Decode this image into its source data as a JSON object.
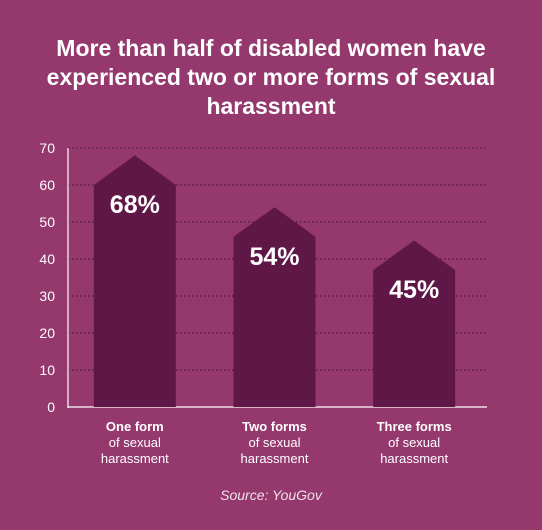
{
  "title": "More than half of disabled women have experienced two or more forms of sexual harassment",
  "source": "Source: YouGov",
  "colors": {
    "background": "#94386e",
    "bar": "#5e1746",
    "text": "#ffffff",
    "grid": "#3f0d2e"
  },
  "chart_data": {
    "type": "bar",
    "title": "More than half of disabled women have experienced two or more forms of sexual harassment",
    "categories": [
      {
        "strong": "One form",
        "rest": "of sexual harassment"
      },
      {
        "strong": "Two forms",
        "rest": "of sexual harassment"
      },
      {
        "strong": "Three forms",
        "rest": "of sexual harassment"
      }
    ],
    "values": [
      68,
      54,
      45
    ],
    "value_labels": [
      "68%",
      "54%",
      "45%"
    ],
    "ylim": [
      0,
      70
    ],
    "yticks": [
      0,
      10,
      20,
      30,
      40,
      50,
      60,
      70
    ],
    "grid": true
  }
}
